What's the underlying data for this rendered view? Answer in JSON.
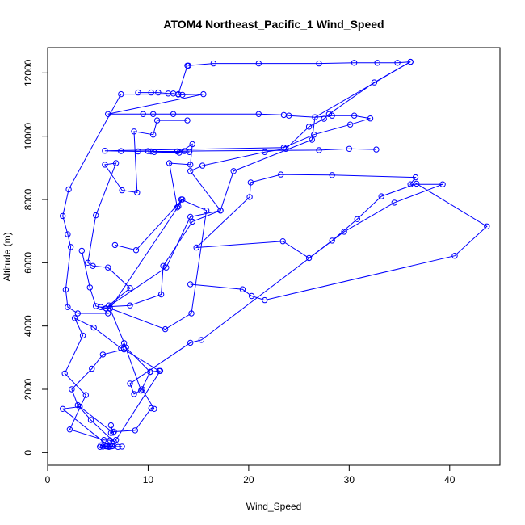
{
  "chart_data": {
    "type": "scatter",
    "title": "ATOM4 Northeast_Pacific_1 Wind_Speed",
    "xlabel": "Wind_Speed",
    "ylabel": "Altitude (m)",
    "xlim": [
      0,
      45
    ],
    "ylim": [
      -400,
      12800
    ],
    "x_ticks": [
      0,
      10,
      20,
      30,
      40
    ],
    "y_ticks": [
      0,
      2000,
      4000,
      6000,
      8000,
      10000,
      12000
    ],
    "grid": false,
    "legend": "none",
    "series_color": "#0000ff",
    "series": [
      {
        "points": [
          [
            14,
            12230
          ],
          [
            16.5,
            12300
          ],
          [
            21,
            12300
          ],
          [
            27,
            12300
          ],
          [
            30.5,
            12320
          ],
          [
            32.8,
            12320
          ],
          [
            34.8,
            12320
          ],
          [
            36.1,
            12350
          ],
          [
            32.5,
            11700
          ],
          [
            28,
            10700
          ],
          [
            27.5,
            10550
          ],
          [
            26,
            10300
          ],
          [
            23.7,
            9600
          ],
          [
            21.6,
            9500
          ],
          [
            15.4,
            9070
          ],
          [
            14.2,
            8900
          ],
          [
            17.2,
            7650
          ],
          [
            14.4,
            7300
          ],
          [
            11.5,
            5900
          ],
          [
            11.3,
            5000
          ],
          [
            8.2,
            4650
          ],
          [
            5.3,
            4600
          ],
          [
            6,
            4400
          ],
          [
            3,
            4400
          ],
          [
            2,
            4600
          ],
          [
            1.8,
            5150
          ],
          [
            2.3,
            6500
          ],
          [
            2,
            6900
          ],
          [
            1.5,
            7480
          ],
          [
            2.1,
            8320
          ],
          [
            7.3,
            11330
          ],
          [
            13,
            11330
          ],
          [
            13.9,
            12230
          ]
        ]
      },
      {
        "points": [
          [
            9,
            11380
          ],
          [
            10.3,
            11380
          ],
          [
            11,
            11380
          ],
          [
            12,
            11350
          ],
          [
            12.5,
            11350
          ],
          [
            13,
            11320
          ],
          [
            13.4,
            11310
          ],
          [
            15.5,
            11330
          ],
          [
            6,
            10700
          ],
          [
            9.5,
            10700
          ],
          [
            10.5,
            10700
          ],
          [
            12.5,
            10700
          ],
          [
            21,
            10700
          ],
          [
            23.5,
            10670
          ],
          [
            24,
            10650
          ],
          [
            26.6,
            10600
          ],
          [
            28.3,
            10650
          ],
          [
            30.5,
            10650
          ],
          [
            32.1,
            10560
          ],
          [
            30.1,
            10370
          ],
          [
            26.5,
            10050
          ],
          [
            23.5,
            9640
          ],
          [
            5.7,
            9540
          ],
          [
            7.3,
            9530
          ],
          [
            9,
            9520
          ],
          [
            10,
            9530
          ],
          [
            10.3,
            9520
          ],
          [
            12.9,
            9520
          ],
          [
            13.6,
            9530
          ],
          [
            27,
            9560
          ],
          [
            30,
            9600
          ],
          [
            32.7,
            9580
          ]
        ]
      },
      {
        "points": [
          [
            13.9,
            10500
          ],
          [
            10.9,
            10500
          ],
          [
            10.5,
            10050
          ],
          [
            8.6,
            10150
          ],
          [
            8.9,
            8220
          ],
          [
            7.4,
            8290
          ],
          [
            5.7,
            9100
          ],
          [
            6.8,
            9150
          ],
          [
            4.8,
            7500
          ],
          [
            4,
            6000
          ],
          [
            4.5,
            5900
          ],
          [
            6,
            5850
          ],
          [
            8.2,
            5200
          ],
          [
            6.1,
            4650
          ],
          [
            6.2,
            4560
          ],
          [
            11.7,
            3900
          ],
          [
            14.3,
            4400
          ],
          [
            15.8,
            7650
          ],
          [
            13.3,
            8000
          ],
          [
            12.9,
            7750
          ],
          [
            12.1,
            9150
          ],
          [
            14.2,
            9100
          ],
          [
            14.4,
            9750
          ],
          [
            13.1,
            9480
          ],
          [
            10.6,
            9500
          ],
          [
            14.1,
            9500
          ]
        ]
      },
      {
        "points": [
          [
            14.2,
            5320
          ],
          [
            19.4,
            5160
          ],
          [
            20.3,
            4950
          ],
          [
            21.6,
            4820
          ],
          [
            40.5,
            6220
          ],
          [
            43.7,
            7150
          ],
          [
            36.7,
            8500
          ],
          [
            33.2,
            8100
          ],
          [
            30.8,
            7380
          ],
          [
            28.3,
            6700
          ],
          [
            26,
            6150
          ],
          [
            23.4,
            6680
          ],
          [
            14.8,
            6480
          ],
          [
            20.1,
            8080
          ],
          [
            20.2,
            8540
          ],
          [
            23.2,
            8790
          ],
          [
            28.3,
            8770
          ],
          [
            36.6,
            8700
          ],
          [
            36.1,
            8480
          ],
          [
            39.3,
            8480
          ],
          [
            34.5,
            7900
          ],
          [
            29.5,
            6980
          ],
          [
            15.3,
            3560
          ],
          [
            14.2,
            3470
          ],
          [
            8.2,
            2180
          ],
          [
            8.6,
            1850
          ],
          [
            9.4,
            2000
          ],
          [
            10.6,
            1380
          ],
          [
            10.3,
            1400
          ],
          [
            8.7,
            700
          ],
          [
            6.6,
            660
          ],
          [
            6.3,
            620
          ],
          [
            6.3,
            860
          ],
          [
            6.5,
            630
          ],
          [
            3.2,
            1450
          ],
          [
            1.5,
            1380
          ],
          [
            6.1,
            200
          ],
          [
            5.2,
            180
          ],
          [
            5.8,
            200
          ],
          [
            6.1,
            180
          ],
          [
            6.4,
            200
          ],
          [
            7.0,
            180
          ],
          [
            7.4,
            190
          ],
          [
            5.5,
            190
          ],
          [
            5.3,
            230
          ],
          [
            5.9,
            200
          ],
          [
            6.5,
            210
          ],
          [
            6.2,
            390
          ],
          [
            5.6,
            400
          ],
          [
            2.2,
            730
          ],
          [
            3.8,
            1820
          ],
          [
            1.7,
            2500
          ],
          [
            3.5,
            3700
          ],
          [
            2.7,
            4250
          ],
          [
            4.6,
            3950
          ],
          [
            7.3,
            3300
          ],
          [
            7.6,
            3460
          ],
          [
            9.3,
            1960
          ],
          [
            10.2,
            2550
          ],
          [
            11.1,
            2580
          ],
          [
            7.6,
            3260
          ],
          [
            5.5,
            3100
          ],
          [
            4.4,
            2650
          ],
          [
            2.4,
            2000
          ],
          [
            3,
            1500
          ],
          [
            4.3,
            1030
          ],
          [
            6.6,
            340
          ],
          [
            6.8,
            400
          ],
          [
            11.2,
            2580
          ]
        ]
      },
      {
        "points": [
          [
            3.4,
            6380
          ],
          [
            4.2,
            5220
          ],
          [
            4.8,
            4630
          ],
          [
            5.8,
            4560
          ],
          [
            11.8,
            5850
          ],
          [
            14.2,
            7450
          ],
          [
            17.2,
            7650
          ],
          [
            18.5,
            8900
          ],
          [
            26.3,
            9890
          ],
          [
            26.6,
            10600
          ],
          [
            36.1,
            12350
          ]
        ]
      },
      {
        "points": [
          [
            6.7,
            6560
          ],
          [
            8.8,
            6400
          ],
          [
            13.4,
            8000
          ],
          [
            13,
            7780
          ],
          [
            6.2,
            4550
          ],
          [
            7.8,
            3320
          ],
          [
            10.2,
            2550
          ]
        ]
      }
    ]
  }
}
